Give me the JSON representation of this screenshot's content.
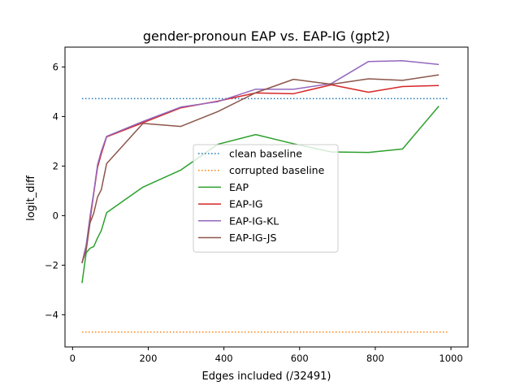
{
  "chart_data": {
    "type": "line",
    "title": "gender-pronoun EAP vs. EAP-IG (gpt2)",
    "xlabel": "Edges included (/32491)",
    "ylabel": "logit_diff",
    "xlim": [
      -20,
      1045
    ],
    "ylim": [
      -5.3,
      6.8
    ],
    "xticks": [
      0,
      200,
      400,
      600,
      800,
      1000
    ],
    "yticks": [
      -4,
      -2,
      0,
      2,
      4,
      6
    ],
    "grid": false,
    "legend_position": "center",
    "baselines": [
      {
        "name": "clean baseline",
        "y": 4.72,
        "x": [
          25,
          990
        ],
        "color": "#1f77b4",
        "style": "dotted"
      },
      {
        "name": "corrupted baseline",
        "y": -4.7,
        "x": [
          25,
          990
        ],
        "color": "#ff7f0e",
        "style": "dotted"
      }
    ],
    "series": [
      {
        "name": "EAP",
        "color": "#2ca02c",
        "x": [
          25,
          36,
          46,
          56,
          66,
          76,
          90,
          186,
          286,
          384,
          484,
          584,
          684,
          782,
          872,
          968
        ],
        "y": [
          -2.72,
          -1.5,
          -1.32,
          -1.25,
          -0.9,
          -0.6,
          0.12,
          1.15,
          1.84,
          2.88,
          3.27,
          2.9,
          2.57,
          2.55,
          2.69,
          4.42
        ]
      },
      {
        "name": "EAP-IG",
        "color": "#d62728",
        "x": [
          25,
          36,
          46,
          56,
          66,
          76,
          90,
          186,
          286,
          384,
          484,
          584,
          684,
          782,
          872,
          968
        ],
        "y": [
          -1.92,
          -1.2,
          -0.2,
          0.9,
          1.95,
          2.5,
          3.18,
          3.75,
          4.35,
          4.62,
          4.95,
          4.92,
          5.28,
          4.98,
          5.21,
          5.25
        ]
      },
      {
        "name": "EAP-IG-KL",
        "color": "#9467bd",
        "x": [
          25,
          36,
          46,
          56,
          66,
          76,
          90,
          186,
          286,
          384,
          484,
          584,
          684,
          782,
          872,
          968
        ],
        "y": [
          -1.92,
          -1.2,
          -0.05,
          0.95,
          2.05,
          2.6,
          3.2,
          3.8,
          4.38,
          4.6,
          5.1,
          5.1,
          5.33,
          6.22,
          6.25,
          6.1
        ]
      },
      {
        "name": "EAP-IG-JS",
        "color": "#8c564b",
        "x": [
          25,
          36,
          46,
          56,
          66,
          76,
          90,
          186,
          286,
          384,
          484,
          584,
          684,
          782,
          872,
          968
        ],
        "y": [
          -1.9,
          -1.4,
          -0.3,
          0.1,
          0.75,
          1.05,
          2.1,
          3.72,
          3.6,
          4.2,
          4.96,
          5.5,
          5.3,
          5.52,
          5.46,
          5.68
        ]
      }
    ]
  }
}
